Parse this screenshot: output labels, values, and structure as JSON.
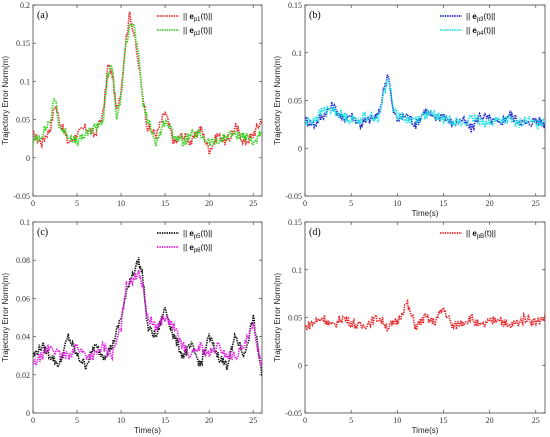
{
  "chart_data": [
    {
      "type": "line",
      "panel_label": "(a)",
      "xlabel": "",
      "ylabel": "Trajectory Error Norm(m)",
      "xlim": [
        0,
        26
      ],
      "ylim": [
        -0.05,
        0.2
      ],
      "xticks": [
        0,
        5,
        10,
        15,
        20,
        25
      ],
      "yticks": [
        -0.05,
        0,
        0.05,
        0.1,
        0.15,
        0.2
      ],
      "legend_position": "top-right",
      "series": [
        {
          "name": "|| e_p1(t)||",
          "legend_main": "|| ",
          "legend_bold": "e",
          "legend_sub": "p1",
          "legend_tail": "(t)||",
          "color": "#e8262a",
          "x": [
            0,
            1,
            2,
            2.5,
            3,
            4,
            5,
            6,
            7,
            8,
            8.5,
            9,
            9.5,
            10,
            10.5,
            11,
            11.5,
            12,
            12.5,
            13,
            14,
            15,
            16,
            17,
            18,
            19,
            20,
            21,
            22,
            23,
            24,
            25,
            26
          ],
          "y": [
            0.03,
            0.02,
            0.04,
            0.07,
            0.05,
            0.02,
            0.03,
            0.04,
            0.03,
            0.06,
            0.12,
            0.11,
            0.06,
            0.09,
            0.15,
            0.19,
            0.16,
            0.12,
            0.08,
            0.04,
            0.03,
            0.06,
            0.02,
            0.03,
            0.02,
            0.04,
            0.01,
            0.03,
            0.02,
            0.04,
            0.02,
            0.03,
            0.05
          ]
        },
        {
          "name": "|| e_p2(t)||",
          "legend_main": "|| ",
          "legend_bold": "e",
          "legend_sub": "p2",
          "legend_tail": "(t)||",
          "color": "#33d11c",
          "x": [
            0,
            1,
            2,
            2.5,
            3,
            4,
            5,
            6,
            7,
            8,
            8.5,
            9,
            9.5,
            10,
            10.5,
            11,
            11.5,
            12,
            12.5,
            13,
            14,
            15,
            16,
            17,
            18,
            19,
            20,
            21,
            22,
            23,
            24,
            25,
            26
          ],
          "y": [
            0.02,
            0.03,
            0.05,
            0.08,
            0.04,
            0.03,
            0.02,
            0.03,
            0.04,
            0.05,
            0.11,
            0.12,
            0.05,
            0.08,
            0.14,
            0.18,
            0.17,
            0.13,
            0.07,
            0.05,
            0.02,
            0.05,
            0.03,
            0.02,
            0.03,
            0.03,
            0.02,
            0.02,
            0.03,
            0.03,
            0.03,
            0.02,
            0.03
          ]
        }
      ]
    },
    {
      "type": "line",
      "panel_label": "(b)",
      "xlabel": "Time(s)",
      "ylabel": "Trajectory Error Norm(m)",
      "xlim": [
        0,
        26
      ],
      "ylim": [
        -0.05,
        0.15
      ],
      "xticks": [
        0,
        5,
        10,
        15,
        20,
        25
      ],
      "yticks": [
        -0.05,
        0,
        0.05,
        0.1,
        0.15
      ],
      "legend_position": "top-right",
      "series": [
        {
          "name": "|| e_p3(t)||",
          "legend_main": "|| ",
          "legend_bold": "e",
          "legend_sub": "p3",
          "legend_tail": "(t)||",
          "color": "#1a23c8",
          "x": [
            0,
            1,
            2,
            3,
            4,
            5,
            6,
            7,
            8,
            8.5,
            9,
            9.5,
            10,
            11,
            12,
            13,
            14,
            15,
            16,
            17,
            18,
            19,
            20,
            21,
            22,
            23,
            24,
            25,
            26
          ],
          "y": [
            0.03,
            0.025,
            0.035,
            0.045,
            0.03,
            0.035,
            0.025,
            0.03,
            0.035,
            0.06,
            0.08,
            0.04,
            0.03,
            0.035,
            0.025,
            0.04,
            0.03,
            0.035,
            0.025,
            0.03,
            0.02,
            0.035,
            0.03,
            0.025,
            0.035,
            0.03,
            0.025,
            0.03,
            0.025
          ]
        },
        {
          "name": "|| e_p4(t)||",
          "legend_main": "|| ",
          "legend_bold": "e",
          "legend_sub": "p4",
          "legend_tail": "(t)||",
          "color": "#1fe3e3",
          "x": [
            0,
            1,
            2,
            3,
            4,
            5,
            6,
            7,
            8,
            8.5,
            9,
            9.5,
            10,
            11,
            12,
            13,
            14,
            15,
            16,
            17,
            18,
            19,
            20,
            21,
            22,
            23,
            24,
            25,
            26
          ],
          "y": [
            0.025,
            0.03,
            0.04,
            0.04,
            0.035,
            0.03,
            0.03,
            0.035,
            0.03,
            0.055,
            0.075,
            0.045,
            0.035,
            0.03,
            0.03,
            0.035,
            0.035,
            0.03,
            0.03,
            0.025,
            0.03,
            0.03,
            0.025,
            0.03,
            0.03,
            0.025,
            0.03,
            0.025,
            0.03
          ]
        }
      ]
    },
    {
      "type": "line",
      "panel_label": "(c)",
      "xlabel": "Time(s)",
      "ylabel": "Trajectory Error Norm(m)",
      "xlim": [
        0,
        26
      ],
      "ylim": [
        0,
        0.1
      ],
      "xticks": [
        0,
        5,
        10,
        15,
        20,
        25
      ],
      "yticks": [
        0,
        0.02,
        0.04,
        0.06,
        0.08,
        0.1
      ],
      "legend_position": "top-right",
      "series": [
        {
          "name": "|| e_p5(t)||",
          "legend_main": "|| ",
          "legend_bold": "e",
          "legend_sub": "p5",
          "legend_tail": "(t)||",
          "color": "#111111",
          "x": [
            0,
            1,
            2,
            3,
            4,
            5,
            6,
            7,
            8,
            9,
            10,
            10.5,
            11,
            11.5,
            12,
            12.5,
            13,
            14,
            15,
            16,
            17,
            18,
            19,
            20,
            21,
            22,
            23,
            24,
            25,
            26
          ],
          "y": [
            0.03,
            0.035,
            0.03,
            0.025,
            0.04,
            0.03,
            0.025,
            0.035,
            0.03,
            0.035,
            0.05,
            0.06,
            0.07,
            0.075,
            0.08,
            0.07,
            0.045,
            0.04,
            0.055,
            0.04,
            0.03,
            0.035,
            0.025,
            0.04,
            0.03,
            0.025,
            0.04,
            0.03,
            0.05,
            0.02
          ]
        },
        {
          "name": "|| e_p6(t)||",
          "legend_main": "|| ",
          "legend_bold": "e",
          "legend_sub": "p6",
          "legend_tail": "(t)||",
          "color": "#e01ce0",
          "x": [
            0,
            1,
            2,
            3,
            4,
            5,
            6,
            7,
            8,
            9,
            10,
            10.5,
            11,
            11.5,
            12,
            12.5,
            13,
            14,
            15,
            16,
            17,
            18,
            19,
            20,
            21,
            22,
            23,
            24,
            25,
            26
          ],
          "y": [
            0.025,
            0.03,
            0.035,
            0.03,
            0.03,
            0.035,
            0.03,
            0.03,
            0.035,
            0.03,
            0.045,
            0.065,
            0.07,
            0.07,
            0.075,
            0.065,
            0.05,
            0.045,
            0.05,
            0.045,
            0.035,
            0.03,
            0.035,
            0.03,
            0.035,
            0.03,
            0.03,
            0.035,
            0.045,
            0.025
          ]
        }
      ]
    },
    {
      "type": "line",
      "panel_label": "(d)",
      "xlabel": "Time(s)",
      "ylabel": "Trajectory Error Norm(m)",
      "xlim": [
        0,
        26
      ],
      "ylim": [
        -0.05,
        0.15
      ],
      "xticks": [
        0,
        5,
        10,
        15,
        20,
        25
      ],
      "yticks": [
        -0.05,
        0,
        0.05,
        0.1,
        0.15
      ],
      "legend_position": "top-right",
      "series": [
        {
          "name": "|| e_pB(t)||",
          "legend_main": "|| ",
          "legend_bold": "e",
          "legend_sub": "pB",
          "legend_tail": "(t)||",
          "color": "#e8262a",
          "x": [
            0,
            1,
            2,
            3,
            4,
            5,
            6,
            7,
            8,
            9,
            10,
            11,
            12,
            13,
            14,
            15,
            16,
            17,
            18,
            19,
            20,
            21,
            22,
            23,
            24,
            25,
            26
          ],
          "y": [
            0.04,
            0.045,
            0.05,
            0.04,
            0.05,
            0.045,
            0.04,
            0.045,
            0.05,
            0.04,
            0.045,
            0.065,
            0.04,
            0.05,
            0.045,
            0.06,
            0.04,
            0.045,
            0.05,
            0.04,
            0.045,
            0.05,
            0.04,
            0.045,
            0.05,
            0.045,
            0.05
          ]
        }
      ]
    }
  ]
}
